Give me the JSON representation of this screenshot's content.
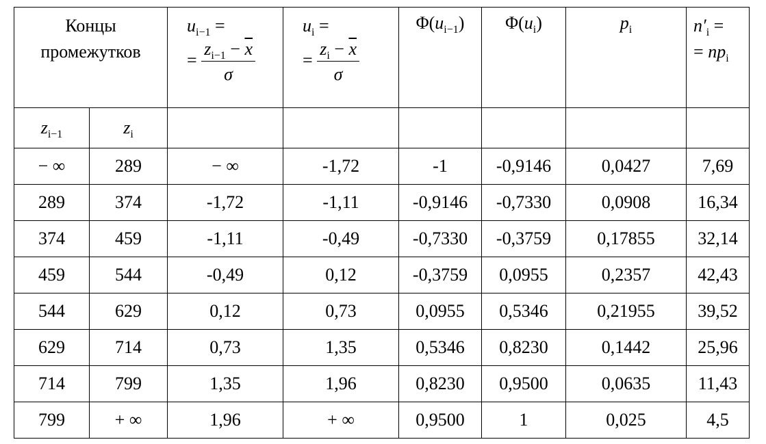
{
  "header": {
    "col1": [
      "Концы",
      "промежутков"
    ],
    "col2": {
      "lhs": "u",
      "lhs_sub": "i−1",
      "eq": "=",
      "eq2": "=",
      "num": "z",
      "num_sub": "i−1",
      "minus": "−",
      "xbar": "x",
      "den": "σ"
    },
    "col3": {
      "lhs": "u",
      "lhs_sub": "i",
      "eq": "=",
      "eq2": "=",
      "num": "z",
      "num_sub": "i",
      "minus": "−",
      "xbar": "x",
      "den": "σ"
    },
    "col4": {
      "fn": "Φ",
      "open": "(",
      "arg": "u",
      "arg_sub": "i−1",
      "close": ")"
    },
    "col5": {
      "fn": "Φ",
      "open": "(",
      "arg": "u",
      "arg_sub": "i",
      "close": ")"
    },
    "col6": {
      "var": "p",
      "sub": "i"
    },
    "col7": {
      "lhs": "n′",
      "lhs_sub": "i",
      "eq": "=",
      "eq2": "=",
      "rhs": "np",
      "rhs_sub": "i"
    },
    "sub_header": [
      {
        "var": "z",
        "sub": "i−1"
      },
      {
        "var": "z",
        "sub": "i"
      }
    ]
  },
  "table": {
    "rows": [
      [
        "− ∞",
        "289",
        "− ∞",
        "-1,72",
        "-1",
        "-0,9146",
        "0,0427",
        "7,69"
      ],
      [
        "289",
        "374",
        "-1,72",
        "-1,11",
        "-0,9146",
        "-0,7330",
        "0,0908",
        "16,34"
      ],
      [
        "374",
        "459",
        "-1,11",
        "-0,49",
        "-0,7330",
        "-0,3759",
        "0,17855",
        "32,14"
      ],
      [
        "459",
        "544",
        "-0,49",
        "0,12",
        "-0,3759",
        "0,0955",
        "0,2357",
        "42,43"
      ],
      [
        "544",
        "629",
        "0,12",
        "0,73",
        "0,0955",
        "0,5346",
        "0,21955",
        "39,52"
      ],
      [
        "629",
        "714",
        "0,73",
        "1,35",
        "0,5346",
        "0,8230",
        "0,1442",
        "25,96"
      ],
      [
        "714",
        "799",
        "1,35",
        "1,96",
        "0,8230",
        "0,9500",
        "0,0635",
        "11,43"
      ],
      [
        "799",
        "+ ∞",
        "1,96",
        "+ ∞",
        "0,9500",
        "1",
        "0,025",
        "4,5"
      ]
    ]
  }
}
